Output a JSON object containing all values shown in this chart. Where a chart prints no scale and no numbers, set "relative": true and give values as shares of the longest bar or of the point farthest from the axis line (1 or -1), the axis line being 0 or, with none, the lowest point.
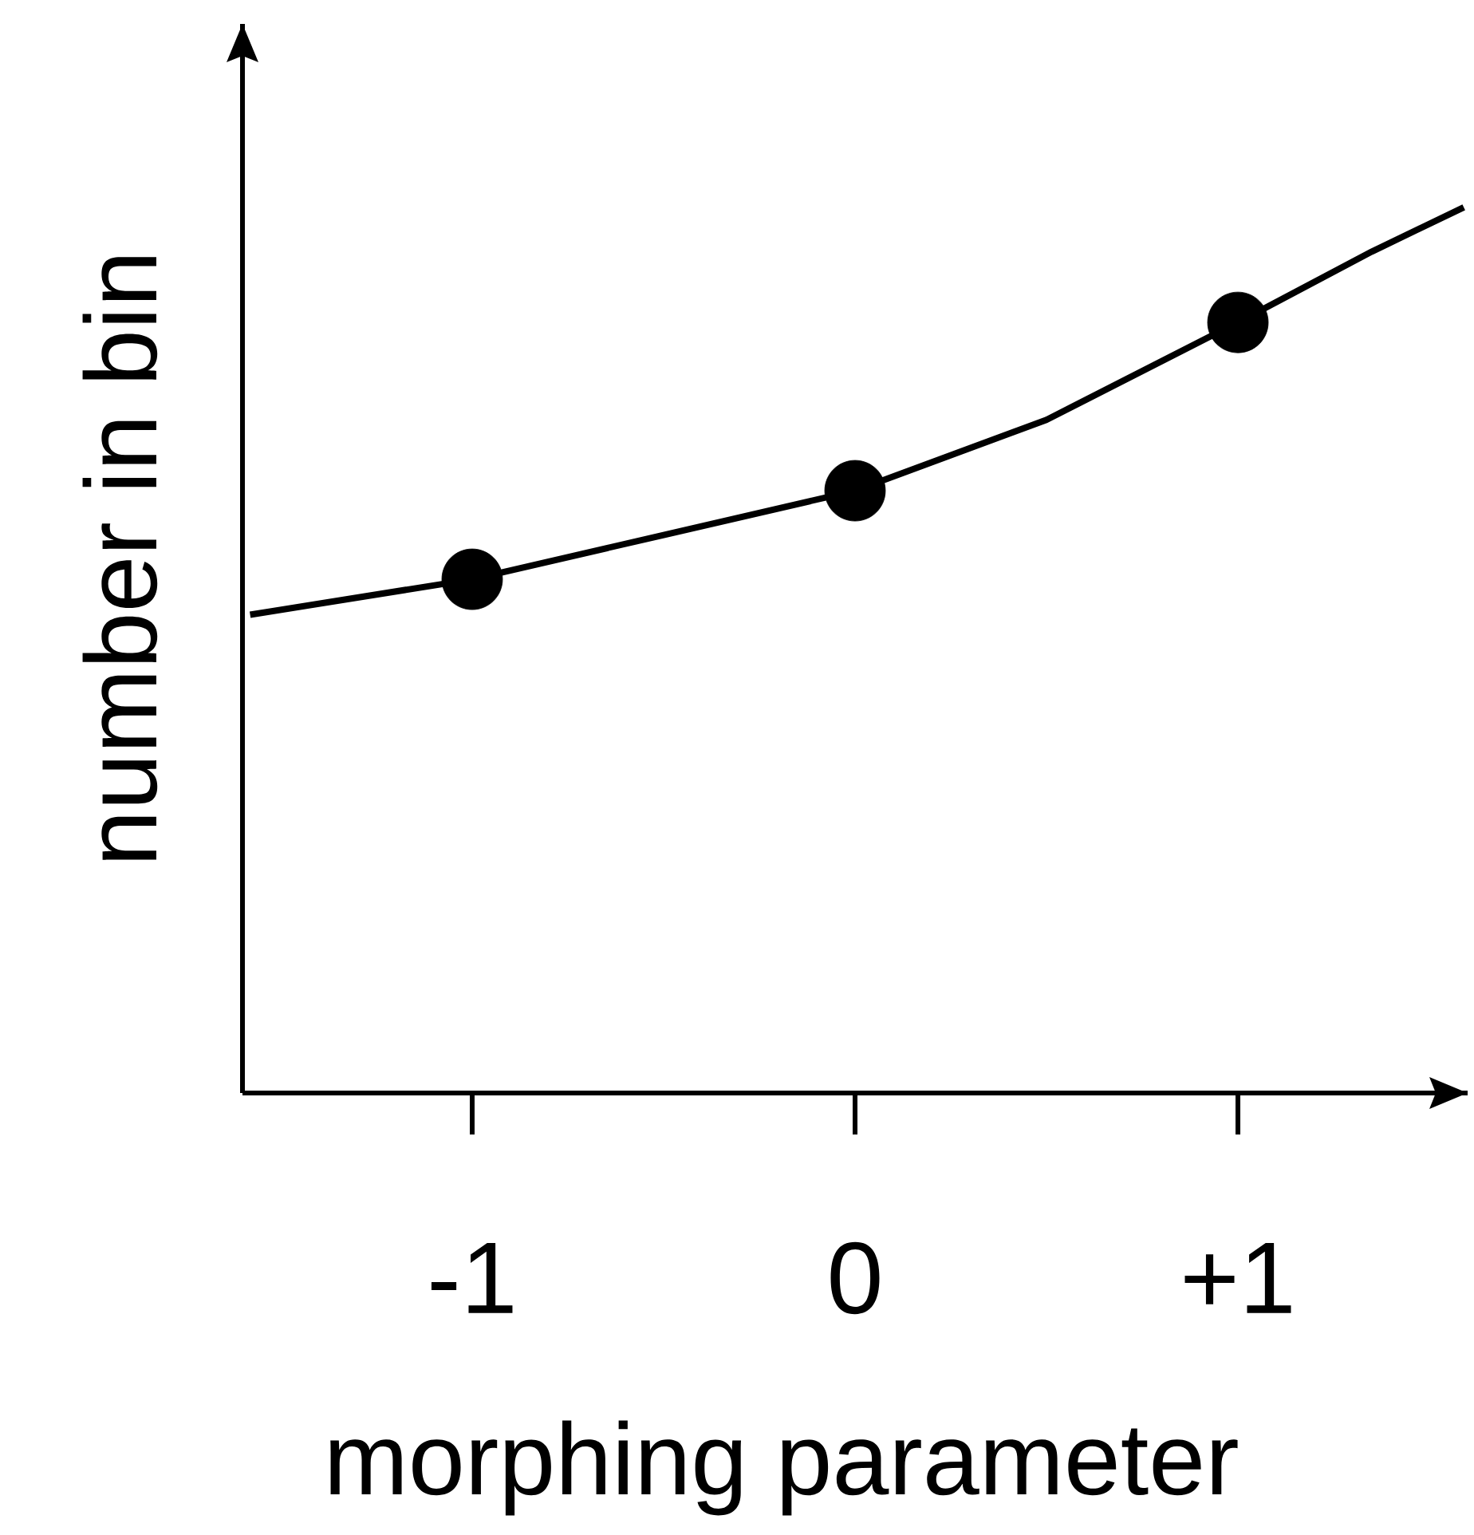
{
  "chart_data": {
    "type": "line",
    "xlabel": "morphing parameter",
    "ylabel": "number in bin",
    "relative": true,
    "xlim": [
      -1.6,
      1.6
    ],
    "xticks": [
      {
        "value": -1,
        "label": "-1"
      },
      0,
      {
        "value": 1,
        "label": "+1"
      }
    ],
    "series": [
      {
        "type": "line",
        "color": "#000000",
        "marker": "none",
        "x": [
          -1.58,
          -1,
          -0.5,
          0,
          0.5,
          1,
          1.35,
          1.59
        ],
        "values": [
          0.54,
          0.58,
          0.63,
          0.68,
          0.76,
          0.87,
          0.95,
          1
        ]
      },
      {
        "type": "scatter",
        "color": "#000000",
        "marker": "circle",
        "x": [
          -1,
          0,
          1
        ],
        "values": [
          0.58,
          0.68,
          0.87
        ]
      }
    ]
  }
}
